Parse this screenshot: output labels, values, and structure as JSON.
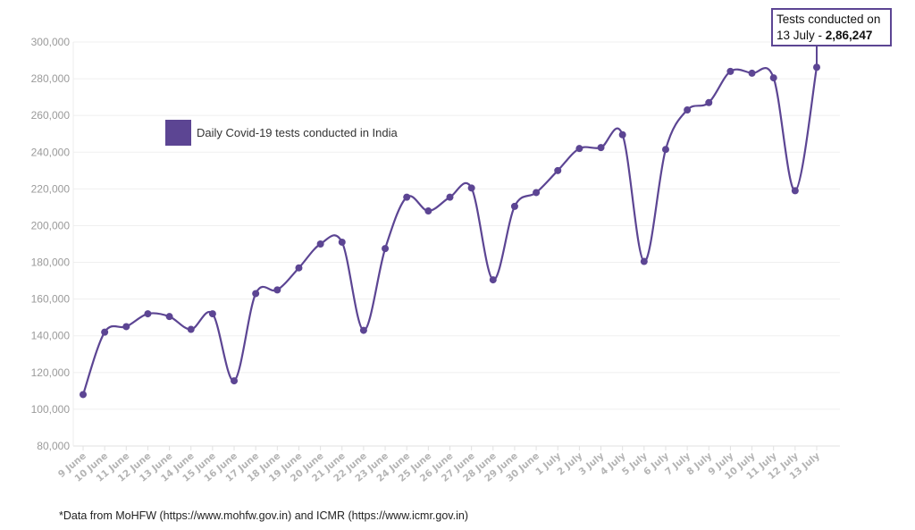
{
  "chart_data": {
    "type": "line",
    "title": "",
    "xlabel": "",
    "ylabel": "",
    "ylim": [
      80000,
      300000
    ],
    "yticks": [
      80000,
      100000,
      120000,
      140000,
      160000,
      180000,
      200000,
      220000,
      240000,
      260000,
      280000,
      300000
    ],
    "ytick_labels": [
      "80,000",
      "100,000",
      "120,000",
      "140,000",
      "160,000",
      "180,000",
      "200,000",
      "220,000",
      "240,000",
      "260,000",
      "280,000",
      "300,000"
    ],
    "grid": true,
    "legend_position": "upper-left (inside plot)",
    "categories": [
      "9 June",
      "10 June",
      "11 June",
      "12 June",
      "13 June",
      "14 June",
      "15 June",
      "16 June",
      "17 June",
      "18 June",
      "19 June",
      "20 June",
      "21 June",
      "22 June",
      "23 June",
      "24 June",
      "25 June",
      "26 June",
      "27 June",
      "28 June",
      "29 June",
      "30 June",
      "1 July",
      "2 July",
      "3 July",
      "4 July",
      "5 July",
      "6 July",
      "7 July",
      "8 July",
      "9 July",
      "10 July",
      "11 July",
      "12 July",
      "13 July"
    ],
    "series": [
      {
        "name": "Daily Covid-19 tests conducted in India",
        "color": "#5c4593",
        "values": [
          108000,
          142000,
          145000,
          152000,
          150500,
          143500,
          152000,
          115500,
          163000,
          165000,
          177000,
          190000,
          191000,
          143000,
          187500,
          215500,
          208000,
          215500,
          220500,
          170500,
          210500,
          218000,
          230000,
          242000,
          242500,
          249500,
          180500,
          241500,
          263000,
          267000,
          284000,
          283000,
          280500,
          219000,
          286247
        ]
      }
    ],
    "annotations": [
      {
        "target": "13 July",
        "text_line1": "Tests conducted on",
        "text_line2_prefix": "13 July - ",
        "text_line2_value": "2,86,247"
      }
    ]
  },
  "legend": {
    "label": "Daily Covid-19 tests conducted in India",
    "swatch_color": "#5c4593"
  },
  "callout": {
    "line1": "Tests conducted on",
    "line2_prefix": "13 July - ",
    "line2_value": "2,86,247",
    "border_color": "#5c4593"
  },
  "footnote": "*Data from MoHFW (https://www.mohfw.gov.in) and ICMR (https://www.icmr.gov.in)"
}
